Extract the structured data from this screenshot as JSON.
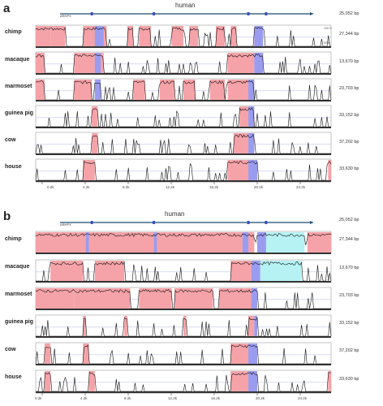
{
  "panels": [
    {
      "letter": "a",
      "genome_label": "human",
      "gene_label": "ARHPX",
      "human_bp": "25,052 bp",
      "species": [
        {
          "name": "chimp",
          "bp": "27,344 bp"
        },
        {
          "name": "macaque",
          "bp": "13,670 bp"
        },
        {
          "name": "marmoset",
          "bp": "23,703 bp"
        },
        {
          "name": "guinea pig",
          "bp": "33,152 bp"
        },
        {
          "name": "cow",
          "bp": "37,202 bp"
        },
        {
          "name": "house",
          "bp": "33,630 bp"
        }
      ],
      "pct_top": "100 %",
      "pct_bottom": "50 %",
      "ticks": [
        "0.2k",
        "4.2k",
        "8.2k",
        "12.2k",
        "16.2k",
        "20.2k",
        "24.2k"
      ]
    },
    {
      "letter": "b",
      "genome_label": "human",
      "gene_label": "ARHPX",
      "human_bp": "25,052 bp",
      "species": [
        {
          "name": "chimp",
          "bp": "27,344 bp"
        },
        {
          "name": "macaque",
          "bp": "13,670 bp"
        },
        {
          "name": "marmoset",
          "bp": "23,703 bp"
        },
        {
          "name": "guinea pig",
          "bp": "33,152 bp"
        },
        {
          "name": "cow",
          "bp": "37,202 bp"
        },
        {
          "name": "house",
          "bp": "33,630 bp"
        }
      ],
      "pct_top": "100 %",
      "pct_bottom": "50 %",
      "ticks": [
        "0.2k",
        "4.2k",
        "8.2k",
        "12.2k",
        "16.2k",
        "20.2k",
        "24.2k"
      ]
    }
  ],
  "colors": {
    "conserved_noncoding": "#f5a3a8",
    "exon": "#9a9cf0",
    "utr": "#b6f2f4",
    "trace": "#111111",
    "gene_line": "#1a4a6e"
  }
}
